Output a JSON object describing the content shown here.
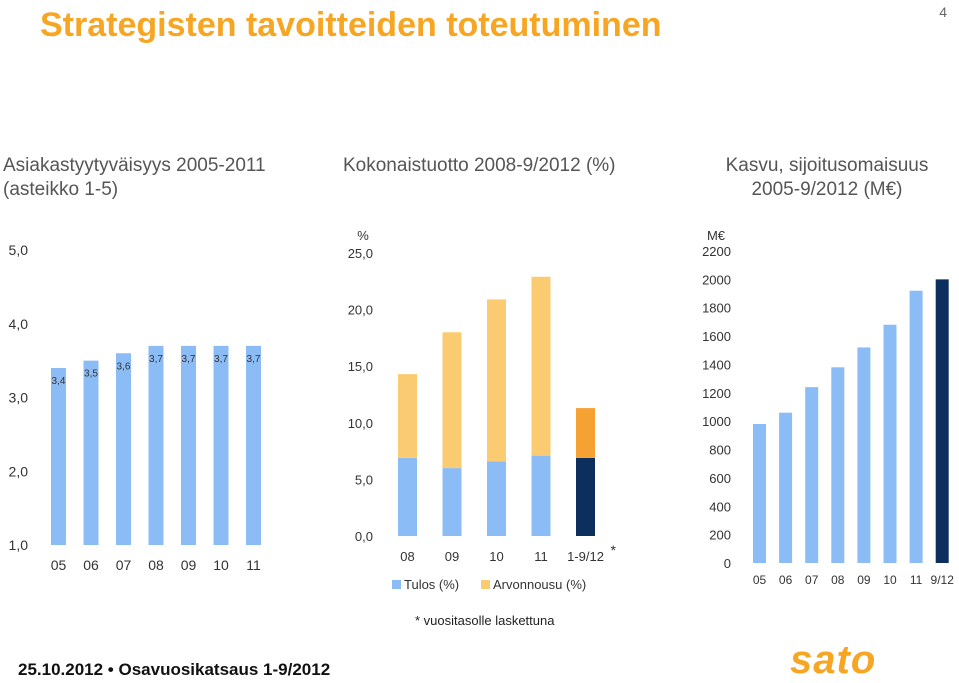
{
  "page": {
    "title": "Strategisten tavoitteiden toteutuminen",
    "page_number": "4",
    "footnote": "* vuositasolle laskettuna",
    "footer": "25.10.2012  •  Osavuosikatsaus 1-9/2012",
    "logo_text": "sato"
  },
  "colors": {
    "light_blue": "#8cbcf5",
    "navy": "#0d2f5e",
    "light_orange": "#fbcb71",
    "orange": "#f6a233",
    "title": "#f6a623"
  },
  "chart_data": [
    {
      "type": "bar",
      "title": "Asiakastyytyväisyys 2005-2011 (asteikko 1-5)",
      "categories": [
        "05",
        "06",
        "07",
        "08",
        "09",
        "10",
        "11"
      ],
      "values": [
        3.4,
        3.5,
        3.6,
        3.7,
        3.7,
        3.7,
        3.7
      ],
      "data_labels": [
        "3,4",
        "3,5",
        "3,6",
        "3,7",
        "3,7",
        "3,7",
        "3,7"
      ],
      "yticks": [
        "1,0",
        "2,0",
        "3,0",
        "4,0",
        "5,0"
      ],
      "ylim": [
        1,
        5
      ],
      "grid": false
    },
    {
      "type": "bar",
      "stacked": true,
      "title": "Kokonaistuotto 2008-9/2012 (%)",
      "ylabel": "%",
      "categories": [
        "08",
        "09",
        "10",
        "11",
        "1-9/12"
      ],
      "category_marker": "*",
      "series": [
        {
          "name": "Tulos (%)",
          "values": [
            6.9,
            6.0,
            6.6,
            7.1,
            6.9
          ]
        },
        {
          "name": "Arvonnousu (%)",
          "values": [
            7.4,
            12.0,
            14.3,
            15.8,
            4.4
          ]
        }
      ],
      "yticks": [
        "0,0",
        "5,0",
        "10,0",
        "15,0",
        "20,0",
        "25,0"
      ],
      "ylim": [
        0,
        25
      ],
      "legend": "bottom",
      "grid": false
    },
    {
      "type": "bar",
      "title": "Kasvu, sijoitusomaisuus 2005-9/2012 (M€)",
      "ylabel": "M€",
      "categories": [
        "05",
        "06",
        "07",
        "08",
        "09",
        "10",
        "11",
        "9/12"
      ],
      "values": [
        980,
        1060,
        1240,
        1380,
        1520,
        1680,
        1920,
        2000
      ],
      "yticks": [
        "0",
        "200",
        "400",
        "600",
        "800",
        "1000",
        "1200",
        "1400",
        "1600",
        "1800",
        "2000",
        "2200"
      ],
      "ylim": [
        0,
        2200
      ],
      "grid": false
    }
  ]
}
